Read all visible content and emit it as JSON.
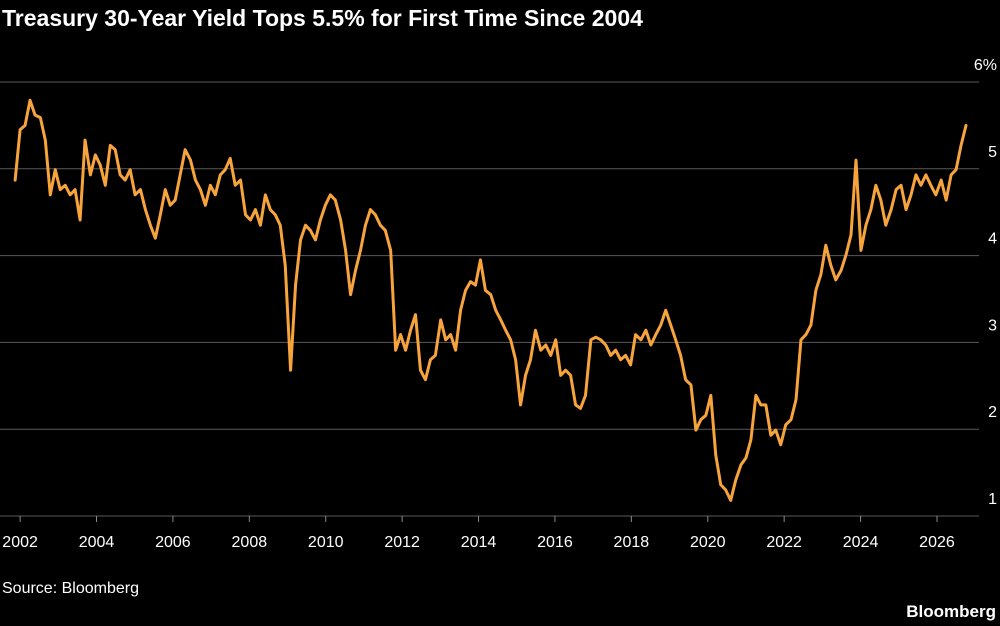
{
  "chart_data": {
    "type": "line",
    "title": "Treasury 30-Year Yield Tops 5.5% for First Time Since 2004",
    "source": "Source: Bloomberg",
    "brand": "Bloomberg",
    "color": "#f7a43c",
    "grid": true,
    "xlim": [
      2001.5,
      2027.1
    ],
    "xticks": [
      2002,
      2004,
      2006,
      2008,
      2010,
      2012,
      2014,
      2016,
      2018,
      2020,
      2022,
      2024,
      2026
    ],
    "ylim": [
      1,
      6
    ],
    "yticks": [
      1,
      2,
      3,
      4,
      5,
      {
        "value": 6,
        "label": "6%"
      }
    ],
    "x": [
      2001.87,
      2002.0,
      2002.13,
      2002.26,
      2002.39,
      2002.53,
      2002.66,
      2002.79,
      2002.92,
      2003.05,
      2003.18,
      2003.31,
      2003.44,
      2003.57,
      2003.7,
      2003.84,
      2003.97,
      2004.1,
      2004.23,
      2004.36,
      2004.49,
      2004.62,
      2004.75,
      2004.88,
      2005.01,
      2005.15,
      2005.28,
      2005.41,
      2005.54,
      2005.67,
      2005.8,
      2005.93,
      2006.06,
      2006.19,
      2006.32,
      2006.46,
      2006.59,
      2006.72,
      2006.85,
      2006.98,
      2007.11,
      2007.24,
      2007.37,
      2007.5,
      2007.63,
      2007.77,
      2007.9,
      2008.03,
      2008.16,
      2008.29,
      2008.42,
      2008.55,
      2008.68,
      2008.81,
      2008.94,
      2009.08,
      2009.21,
      2009.34,
      2009.47,
      2009.6,
      2009.73,
      2009.86,
      2009.99,
      2010.12,
      2010.25,
      2010.39,
      2010.52,
      2010.65,
      2010.78,
      2010.91,
      2011.04,
      2011.17,
      2011.3,
      2011.43,
      2011.56,
      2011.7,
      2011.83,
      2011.96,
      2012.09,
      2012.22,
      2012.35,
      2012.48,
      2012.61,
      2012.74,
      2012.87,
      2013.01,
      2013.14,
      2013.27,
      2013.4,
      2013.53,
      2013.66,
      2013.79,
      2013.92,
      2014.05,
      2014.18,
      2014.32,
      2014.45,
      2014.58,
      2014.71,
      2014.84,
      2014.97,
      2015.1,
      2015.23,
      2015.36,
      2015.49,
      2015.63,
      2015.76,
      2015.89,
      2016.02,
      2016.15,
      2016.28,
      2016.41,
      2016.54,
      2016.67,
      2016.8,
      2016.94,
      2017.07,
      2017.2,
      2017.33,
      2017.46,
      2017.59,
      2017.72,
      2017.85,
      2017.98,
      2018.11,
      2018.25,
      2018.38,
      2018.51,
      2018.64,
      2018.77,
      2018.9,
      2019.03,
      2019.16,
      2019.29,
      2019.42,
      2019.56,
      2019.69,
      2019.82,
      2019.95,
      2020.08,
      2020.21,
      2020.34,
      2020.47,
      2020.6,
      2020.73,
      2020.87,
      2021.0,
      2021.13,
      2021.26,
      2021.39,
      2021.52,
      2021.65,
      2021.78,
      2021.91,
      2022.04,
      2022.18,
      2022.31,
      2022.44,
      2022.57,
      2022.7,
      2022.83,
      2022.96,
      2023.09,
      2023.22,
      2023.35,
      2023.49,
      2023.62,
      2023.75,
      2023.88,
      2024.01,
      2024.14,
      2024.27,
      2024.4,
      2024.53,
      2024.66,
      2024.8,
      2024.93,
      2025.06,
      2025.19,
      2025.32,
      2025.45,
      2025.58,
      2025.71,
      2025.84,
      2025.97,
      2026.11,
      2026.24,
      2026.37,
      2026.5,
      2026.63,
      2026.76
    ],
    "values": [
      4.87,
      5.45,
      5.5,
      5.79,
      5.62,
      5.59,
      5.33,
      4.7,
      4.99,
      4.76,
      4.81,
      4.7,
      4.76,
      4.41,
      5.33,
      4.93,
      5.16,
      5.04,
      4.81,
      5.27,
      5.22,
      4.93,
      4.87,
      4.99,
      4.7,
      4.76,
      4.53,
      4.35,
      4.2,
      4.47,
      4.76,
      4.58,
      4.64,
      4.93,
      5.22,
      5.1,
      4.87,
      4.76,
      4.58,
      4.81,
      4.7,
      4.93,
      4.99,
      5.12,
      4.81,
      4.87,
      4.47,
      4.41,
      4.53,
      4.35,
      4.7,
      4.53,
      4.47,
      4.35,
      3.89,
      2.68,
      3.66,
      4.18,
      4.35,
      4.29,
      4.18,
      4.41,
      4.58,
      4.7,
      4.64,
      4.41,
      4.06,
      3.55,
      3.83,
      4.06,
      4.35,
      4.53,
      4.47,
      4.35,
      4.29,
      4.06,
      2.91,
      3.09,
      2.91,
      3.14,
      3.32,
      2.68,
      2.57,
      2.8,
      2.85,
      3.26,
      3.03,
      3.09,
      2.91,
      3.37,
      3.6,
      3.7,
      3.66,
      3.95,
      3.6,
      3.55,
      3.37,
      3.26,
      3.14,
      3.03,
      2.8,
      2.28,
      2.62,
      2.8,
      3.14,
      2.91,
      2.97,
      2.85,
      3.03,
      2.62,
      2.68,
      2.62,
      2.28,
      2.24,
      2.39,
      3.03,
      3.06,
      3.03,
      2.97,
      2.85,
      2.91,
      2.8,
      2.85,
      2.74,
      3.09,
      3.03,
      3.14,
      2.97,
      3.09,
      3.2,
      3.37,
      3.2,
      3.03,
      2.85,
      2.57,
      2.51,
      1.99,
      2.11,
      2.16,
      2.39,
      1.7,
      1.36,
      1.3,
      1.18,
      1.41,
      1.59,
      1.67,
      1.88,
      2.39,
      2.28,
      2.28,
      1.93,
      1.99,
      1.82,
      2.05,
      2.11,
      2.34,
      3.03,
      3.09,
      3.2,
      3.6,
      3.78,
      4.12,
      3.89,
      3.72,
      3.83,
      4.01,
      4.24,
      5.1,
      4.06,
      4.35,
      4.53,
      4.81,
      4.64,
      4.35,
      4.53,
      4.76,
      4.81,
      4.53,
      4.7,
      4.93,
      4.81,
      4.93,
      4.81,
      4.7,
      4.87,
      4.64,
      4.93,
      4.99,
      5.27,
      5.5
    ]
  }
}
